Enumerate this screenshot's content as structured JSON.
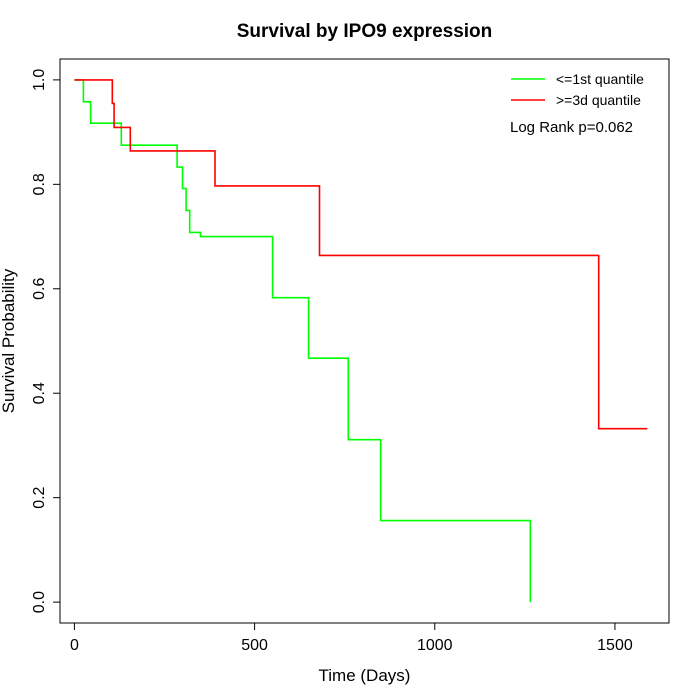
{
  "chart_data": {
    "type": "line",
    "step": true,
    "title": "Survival by IPO9 expression",
    "xlabel": "Time (Days)",
    "ylabel": "Survival Probability",
    "xlim": [
      -40,
      1650
    ],
    "ylim": [
      -0.04,
      1.04
    ],
    "xticks": [
      0,
      500,
      1000,
      1500
    ],
    "yticks": [
      0.0,
      0.2,
      0.4,
      0.6,
      0.8,
      1.0
    ],
    "xtick_labels": [
      "0",
      "500",
      "1000",
      "1500"
    ],
    "ytick_labels": [
      "0.0",
      "0.2",
      "0.4",
      "0.6",
      "0.8",
      "1.0"
    ],
    "grid": false,
    "legend_position": "top-right",
    "annotation": "Log Rank p=0.062",
    "series": [
      {
        "name": "<=1st quantile",
        "color": "#00ff00",
        "x": [
          0,
          25,
          45,
          130,
          285,
          300,
          310,
          320,
          350,
          550,
          650,
          760,
          850,
          1265,
          1265
        ],
        "y": [
          1.0,
          0.958,
          0.917,
          0.875,
          0.833,
          0.792,
          0.75,
          0.708,
          0.7,
          0.583,
          0.467,
          0.311,
          0.156,
          0.156,
          0.0
        ]
      },
      {
        "name": ">=3d quantile",
        "color": "#ff0000",
        "x": [
          0,
          105,
          110,
          155,
          390,
          680,
          1455,
          1590
        ],
        "y": [
          1.0,
          0.955,
          0.909,
          0.864,
          0.797,
          0.664,
          0.332,
          0.332
        ]
      }
    ]
  }
}
